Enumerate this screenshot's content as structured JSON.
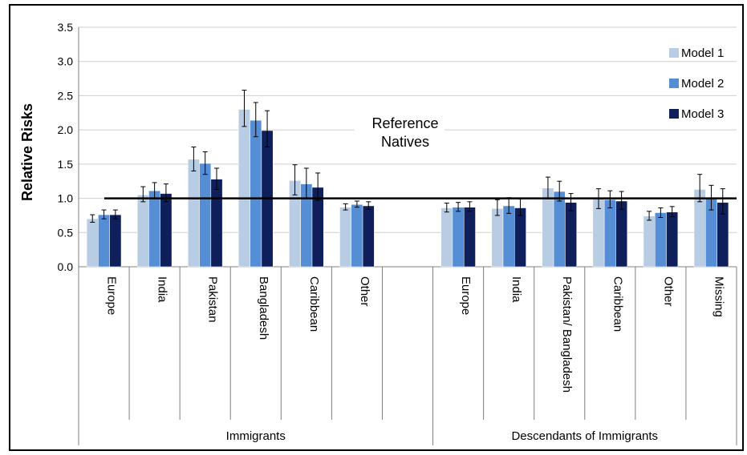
{
  "chart_data": {
    "type": "bar",
    "ylabel": "Relative Risks",
    "ylim": [
      0,
      3.5
    ],
    "yticks": [
      "0.0",
      "0.5",
      "1.0",
      "1.5",
      "2.0",
      "2.5",
      "3.0",
      "3.5"
    ],
    "grid": true,
    "legend_position": "top-right",
    "groups": [
      {
        "label": "Immigrants",
        "categories": [
          "Europe",
          "India",
          "Pakistan",
          "Bangladesh",
          "Caribbean",
          "Other"
        ]
      },
      {
        "label": "Descendants of Immigrants",
        "categories": [
          "Europe",
          "India",
          "Pakistan/ Bangladesh",
          "Caribbean",
          "Other",
          "Missing"
        ]
      }
    ],
    "categories": [
      "Europe",
      "India",
      "Pakistan",
      "Bangladesh",
      "Caribbean",
      "Other",
      "Europe",
      "India",
      "Pakistan/ Bangladesh",
      "Caribbean",
      "Other",
      "Missing"
    ],
    "series": [
      {
        "name": "Model 1",
        "color": "#b8cce4",
        "values": [
          0.7,
          1.05,
          1.57,
          2.3,
          1.26,
          0.87,
          0.86,
          0.85,
          1.15,
          0.99,
          0.74,
          1.13
        ],
        "err_low": [
          0.65,
          0.95,
          1.4,
          2.05,
          1.05,
          0.83,
          0.8,
          0.75,
          1.0,
          0.85,
          0.68,
          0.95
        ],
        "err_high": [
          0.76,
          1.17,
          1.75,
          2.58,
          1.49,
          0.92,
          0.93,
          0.98,
          1.31,
          1.14,
          0.81,
          1.35
        ]
      },
      {
        "name": "Model 2",
        "color": "#558ed5",
        "values": [
          0.76,
          1.11,
          1.51,
          2.14,
          1.21,
          0.91,
          0.87,
          0.89,
          1.1,
          0.98,
          0.79,
          1.0
        ],
        "err_low": [
          0.7,
          1.0,
          1.35,
          1.9,
          1.0,
          0.87,
          0.81,
          0.78,
          0.96,
          0.86,
          0.72,
          0.83
        ],
        "err_high": [
          0.83,
          1.23,
          1.68,
          2.4,
          1.44,
          0.96,
          0.94,
          1.01,
          1.25,
          1.11,
          0.86,
          1.19
        ]
      },
      {
        "name": "Model 3",
        "color": "#0f1f5c",
        "values": [
          0.76,
          1.07,
          1.28,
          1.99,
          1.16,
          0.89,
          0.87,
          0.86,
          0.94,
          0.96,
          0.8,
          0.94
        ],
        "err_low": [
          0.7,
          0.95,
          1.13,
          1.75,
          0.97,
          0.84,
          0.81,
          0.75,
          0.82,
          0.84,
          0.73,
          0.77
        ],
        "err_high": [
          0.83,
          1.21,
          1.44,
          2.28,
          1.37,
          0.95,
          0.95,
          0.99,
          1.07,
          1.1,
          0.88,
          1.14
        ]
      }
    ],
    "reference_line": {
      "value": 1.0,
      "label_line1": "Reference",
      "label_line2": "Natives"
    }
  }
}
